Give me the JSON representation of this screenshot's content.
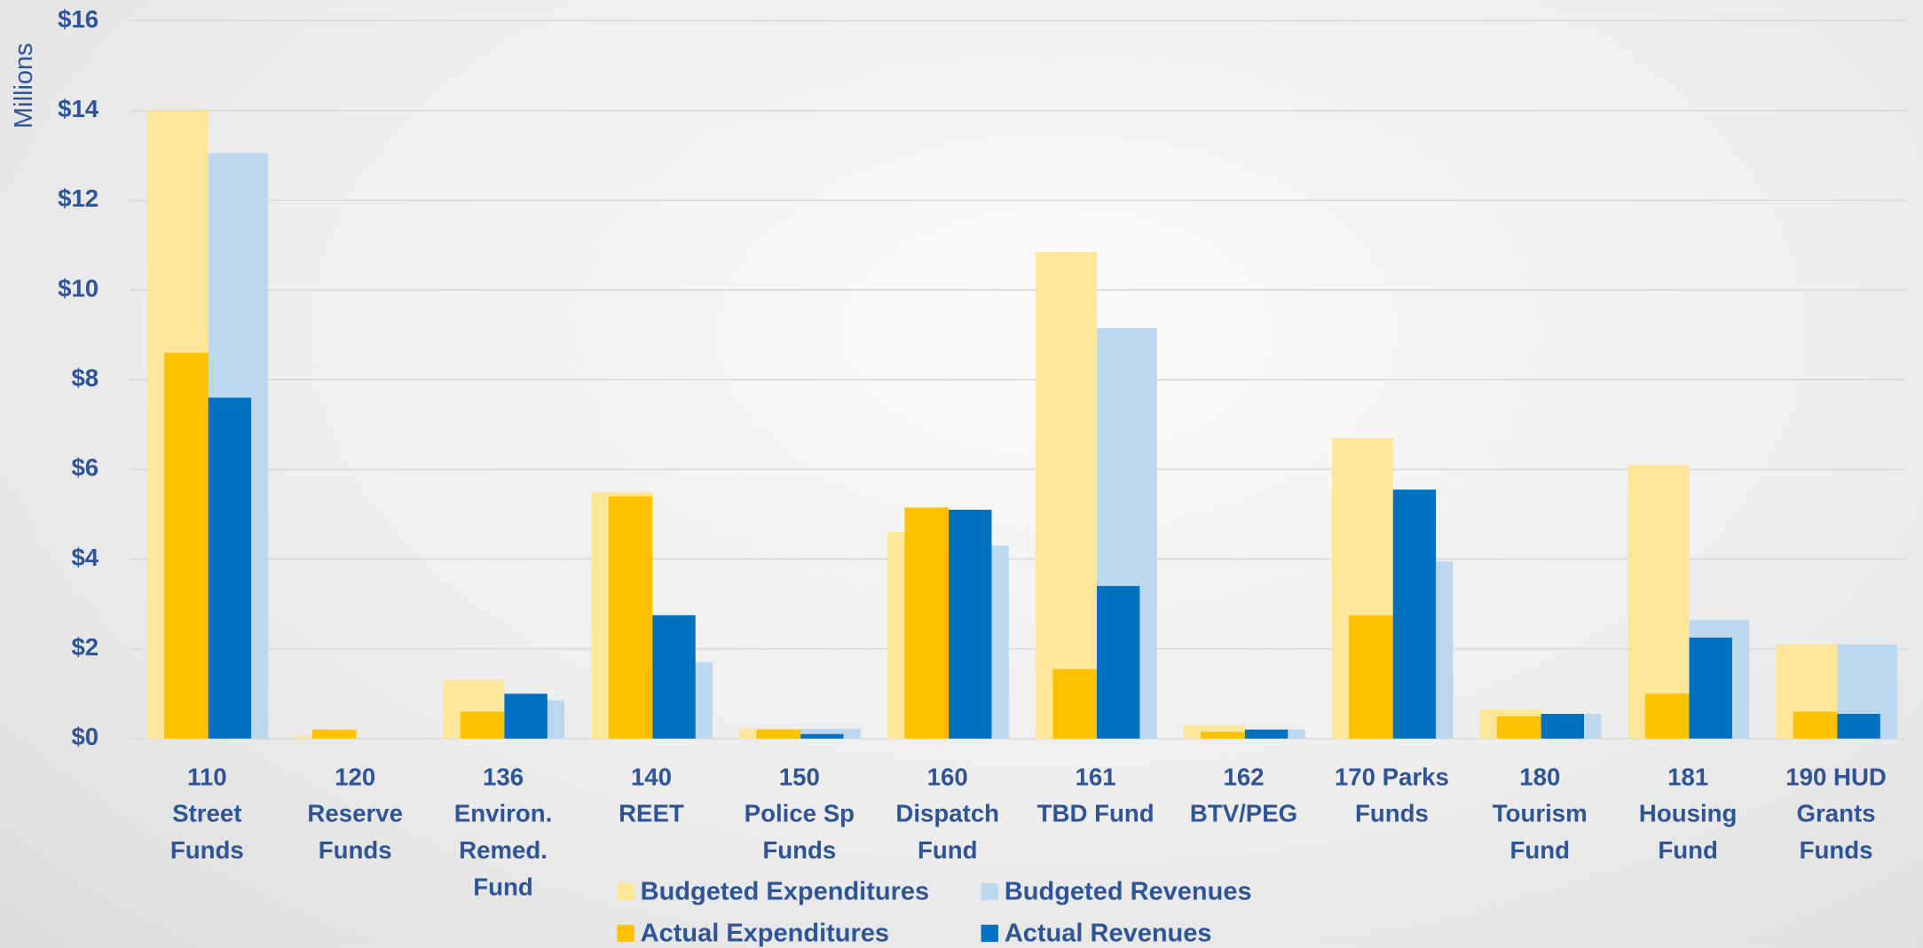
{
  "chart_data": {
    "type": "bar",
    "y_label": "Millions",
    "categories": [
      "110\nStreet\nFunds",
      "120\nReserve\nFunds",
      "136\nEnviron.\nRemed.\nFund",
      "140\nREET",
      "150\nPolice Sp\nFunds",
      "160\nDispatch\nFund",
      "161\nTBD Fund",
      "162\nBTV/PEG",
      "170 Parks\nFunds",
      "180\nTourism\nFund",
      "181\nHousing\nFund",
      "190 HUD\nGrants\nFunds"
    ],
    "series": [
      {
        "name": "Budgeted Expenditures",
        "color": "#ffe699",
        "values": [
          14.0,
          0.05,
          1.3,
          5.5,
          0.22,
          4.6,
          10.85,
          0.3,
          6.7,
          0.65,
          6.1,
          2.1
        ]
      },
      {
        "name": "Budgeted Revenues",
        "color": "#bdd7ee",
        "values": [
          13.05,
          0,
          0.85,
          1.7,
          0.22,
          4.3,
          9.15,
          0.2,
          3.95,
          0.55,
          2.65,
          2.1
        ]
      },
      {
        "name": "Actual Expenditures",
        "color": "#ffc000",
        "values": [
          8.6,
          0.2,
          0.6,
          5.4,
          0.2,
          5.15,
          1.55,
          0.15,
          2.75,
          0.5,
          1.0,
          0.6
        ]
      },
      {
        "name": "Actual Revenues",
        "color": "#0070c0",
        "values": [
          7.6,
          0,
          1.0,
          2.75,
          0.1,
          5.1,
          3.4,
          0.2,
          5.55,
          0.55,
          2.25,
          0.55
        ]
      }
    ],
    "ylim": [
      0,
      16
    ],
    "yticks": [
      {
        "value": 0,
        "label": "$0"
      },
      {
        "value": 2,
        "label": "$2"
      },
      {
        "value": 4,
        "label": "$4"
      },
      {
        "value": 6,
        "label": "$6"
      },
      {
        "value": 8,
        "label": "$8"
      },
      {
        "value": 10,
        "label": "$10"
      },
      {
        "value": 12,
        "label": "$12"
      },
      {
        "value": 14,
        "label": "$14"
      },
      {
        "value": 16,
        "label": "$16"
      }
    ],
    "grid": true,
    "legend": "bottom"
  }
}
